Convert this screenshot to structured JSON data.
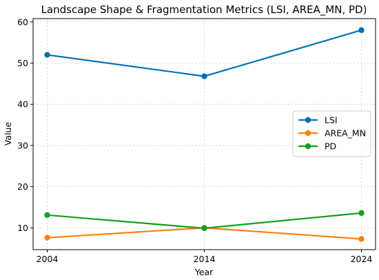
{
  "chart_data": {
    "type": "line",
    "title": "Landscape Shape & Fragmentation Metrics (LSI, AREA_MN, PD)",
    "xlabel": "Year",
    "ylabel": "Value",
    "x": [
      2004,
      2014,
      2024
    ],
    "xticks": [
      "2004",
      "2014",
      "2024"
    ],
    "yticks": [
      10,
      20,
      30,
      40,
      50,
      60
    ],
    "ylim": [
      4.7,
      60.8
    ],
    "grid": true,
    "legend_position": "center-right",
    "series": [
      {
        "name": "LSI",
        "color": "#0072B2",
        "values": [
          52.0,
          46.8,
          58.0
        ]
      },
      {
        "name": "AREA_MN",
        "color": "#FF7F0E",
        "values": [
          7.6,
          10.0,
          7.3
        ]
      },
      {
        "name": "PD",
        "color": "#0FA01F",
        "values": [
          13.1,
          9.9,
          13.6
        ]
      }
    ]
  }
}
